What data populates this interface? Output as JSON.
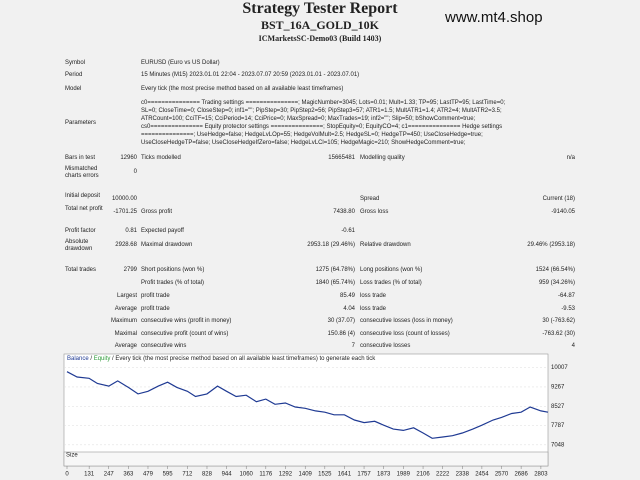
{
  "header": {
    "title": "Strategy Tester Report",
    "subtitle": "BST_16A_GOLD_10K",
    "server": "ICMarketsSC-Demo03 (Build 1403)"
  },
  "watermark": "www.mt4.shop",
  "info": [
    {
      "label": "Symbol",
      "value": "EURUSD (Euro vs US Dollar)"
    },
    {
      "label": "Period",
      "value": "15 Minutes (M15) 2023.01.01 22:04 - 2023.07.07 20:59 (2023.01.01 - 2023.07.01)"
    },
    {
      "label": "Model",
      "value": "Every tick (the most precise method based on all available least timeframes)"
    }
  ],
  "parameters": {
    "label": "Parameters",
    "lines": [
      "c0=============== Trading settings ===============; MagicNumber=3045; Lots=0.01; Mult=1.33; TP=95; LastTP=95; LastTime=0;",
      "SL=0; CloseTime=0; CloseStep=0; inf1=\"\"; PipStep=30; PipStep2=56; PipStep3=57; ATR1=1.5; MultATR1=1.4; ATR2=4; MultATR2=3.5;",
      "ATRCount=100; CciTF=15; CciPeriod=14; CciPrice=0; MaxSpread=0; MaxTrades=19; inf2=\"\"; Slip=50; bShowComment=true;",
      "cs0=============== Equity protector settings ===============; StopEquity=0; EquityCO=4; c1=============== Hedge settings",
      "===============; UseHedge=false; HedgeLvLOp=55; HedgeVolMult=2.5; HedgeSL=0; HedgeTP=450; UseCloseHedge=true;",
      "UseCloseHedgeTP=false; UseCloseHedgeIfZero=false; HedgeLvLCl=105; HedgeMagic=210; ShowHedgeComment=true;"
    ]
  },
  "results": [
    {
      "label": "Bars in test",
      "value": "12960",
      "label2": "Ticks modelled",
      "value2": "15665481",
      "label3": "Modelling quality",
      "value3": "n/a"
    },
    {
      "label": "Mismatched charts errors",
      "value": "0"
    },
    {
      "label": "Initial deposit",
      "value": "10000.00",
      "label3": "Spread",
      "value3": "Current (18)"
    },
    {
      "label": "Total net profit",
      "value": "-1701.25",
      "label2": "Gross profit",
      "value2": "7438.80",
      "label3": "Gross loss",
      "value3": "-9140.05"
    },
    {
      "label": "Profit factor",
      "value": "0.81",
      "label2": "Expected payoff",
      "value2": "-0.61"
    },
    {
      "label": "Absolute drawdown",
      "value": "2928.68",
      "label2": "Maximal drawdown",
      "value2": "2953.18 (29.46%)",
      "label3": "Relative drawdown",
      "value3": "29.46% (2953.18)"
    },
    {
      "label": "Total trades",
      "value": "2799",
      "label2": "Short positions (won %)",
      "value2": "1275 (64.78%)",
      "label3": "Long positions (won %)",
      "value3": "1524 (66.54%)"
    },
    {
      "label2": "Profit trades (% of total)",
      "value2": "1840 (65.74%)",
      "label3": "Loss trades (% of total)",
      "value3": "959 (34.26%)"
    },
    {
      "group": "Largest",
      "label2": "profit trade",
      "value2": "85.49",
      "label3": "loss trade",
      "value3": "-64.87"
    },
    {
      "group": "Average",
      "label2": "profit trade",
      "value2": "4.04",
      "label3": "loss trade",
      "value3": "-9.53"
    },
    {
      "group": "Maximum",
      "label2": "consecutive wins (profit in money)",
      "value2": "30 (37.07)",
      "label3": "consecutive losses (loss in money)",
      "value3": "30 (-763.62)"
    },
    {
      "group": "Maximal",
      "label2": "consecutive profit (count of wins)",
      "value2": "150.86 (4)",
      "label3": "consecutive loss (count of losses)",
      "value3": "-763.62 (30)"
    },
    {
      "group": "Average",
      "label2": "consecutive wins",
      "value2": "7",
      "label3": "consecutive losses",
      "value3": "4"
    }
  ],
  "chart": {
    "type": "line",
    "legend": [
      "Balance",
      "Equity"
    ],
    "model_note": "Every tick (the most precise method based on all available least timeframes) to generate each tick",
    "size_label": "Size",
    "x": [
      0,
      60,
      131,
      180,
      247,
      300,
      363,
      420,
      479,
      540,
      595,
      650,
      712,
      760,
      828,
      890,
      944,
      1000,
      1060,
      1120,
      1176,
      1230,
      1292,
      1350,
      1409,
      1470,
      1525,
      1580,
      1641,
      1700,
      1757,
      1820,
      1873,
      1930,
      1989,
      2050,
      2106,
      2160,
      2222,
      2280,
      2338,
      2400,
      2454,
      2520,
      2570,
      2630,
      2686,
      2740,
      2803,
      2845
    ],
    "series": [
      {
        "name": "Balance",
        "color": "#1f3a93",
        "values": [
          9850,
          9650,
          9600,
          9400,
          9300,
          9500,
          9250,
          9000,
          9100,
          9300,
          9450,
          9250,
          9100,
          8900,
          9000,
          9300,
          9100,
          8900,
          8950,
          8700,
          8800,
          8600,
          8650,
          8500,
          8450,
          8350,
          8300,
          8200,
          8200,
          8000,
          7900,
          7950,
          7800,
          7650,
          7600,
          7700,
          7500,
          7300,
          7350,
          7400,
          7500,
          7650,
          7800,
          8000,
          8100,
          8250,
          8300,
          8500,
          8350,
          8299
        ]
      }
    ],
    "legend_colors": [
      "#1f3a93",
      "#2e9b3a"
    ],
    "xlim": [
      0,
      2845
    ],
    "ylim": [
      6850,
      10300
    ],
    "yticks": [
      10007,
      9267,
      8527,
      7787,
      7048
    ],
    "xticks": [
      0,
      131,
      247,
      363,
      479,
      595,
      712,
      828,
      944,
      1060,
      1176,
      1292,
      1409,
      1525,
      1641,
      1757,
      1873,
      1989,
      2106,
      2222,
      2338,
      2454,
      2570,
      2686,
      2803
    ]
  }
}
